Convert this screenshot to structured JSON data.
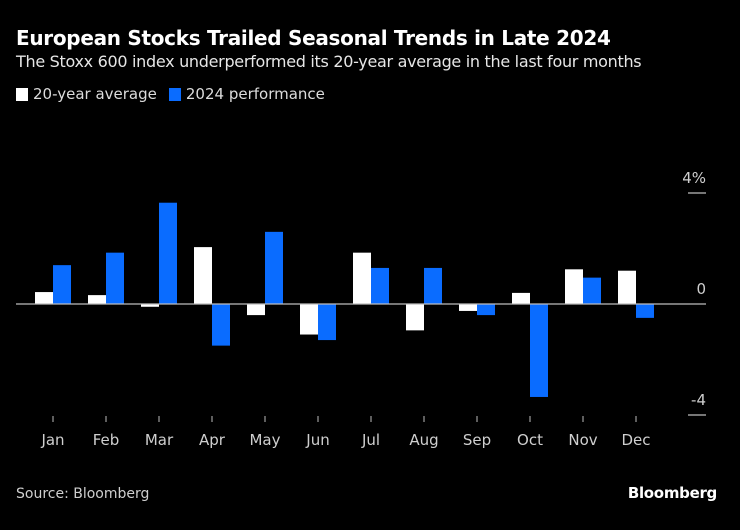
{
  "header": {
    "title": "European Stocks Trailed Seasonal Trends in Late 2024",
    "subtitle": "The Stoxx 600 index underperformed its 20-year average in the last four months"
  },
  "legend": [
    {
      "label": "20-year average",
      "color": "#ffffff"
    },
    {
      "label": "2024 performance",
      "color": "#0a6cff"
    }
  ],
  "footer": {
    "source": "Source: Bloomberg",
    "brand": "Bloomberg"
  },
  "chart_data": {
    "type": "bar",
    "title": "European Stocks Trailed Seasonal Trends in Late 2024",
    "subtitle": "The Stoxx 600 index underperformed its 20-year average in the last four months",
    "xlabel": "",
    "ylabel": "",
    "categories": [
      "Jan",
      "Feb",
      "Mar",
      "Apr",
      "May",
      "Jun",
      "Jul",
      "Aug",
      "Sep",
      "Oct",
      "Nov",
      "Dec"
    ],
    "series": [
      {
        "name": "20-year average",
        "color": "#ffffff",
        "values": [
          0.43,
          0.32,
          -0.1,
          2.05,
          -0.4,
          -1.1,
          1.85,
          -0.95,
          -0.25,
          0.4,
          1.25,
          1.2
        ]
      },
      {
        "name": "2024 performance",
        "color": "#0a6cff",
        "values": [
          1.4,
          1.85,
          3.65,
          -1.5,
          2.6,
          -1.3,
          1.3,
          1.3,
          -0.4,
          -3.35,
          0.95,
          -0.5
        ]
      }
    ],
    "ylim": [
      -4,
      4
    ],
    "yticks": [
      {
        "value": 4,
        "label": "4%"
      },
      {
        "value": 0,
        "label": "0"
      },
      {
        "value": -4,
        "label": "-4"
      }
    ],
    "y_axis_position": "right",
    "legend_position": "top-left",
    "grid": false
  }
}
